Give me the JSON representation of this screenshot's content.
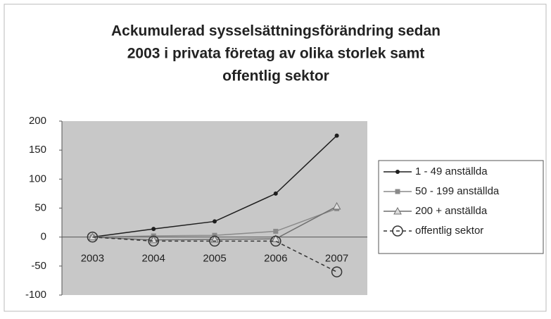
{
  "chart_data": {
    "type": "line",
    "title": [
      "Ackumulerad sysselsättningsförändring sedan",
      "2003 i privata företag av olika storlek samt",
      "offentlig sektor"
    ],
    "categories": [
      "2003",
      "2004",
      "2005",
      "2006",
      "2007"
    ],
    "series": [
      {
        "name": "1 - 49 anställda",
        "color": "#1e1e1e",
        "marker": "dot",
        "dash": false,
        "values": [
          0,
          14,
          27,
          75,
          175
        ]
      },
      {
        "name": "50 - 199 anställda",
        "color": "#8a8a8a",
        "marker": "square",
        "dash": false,
        "values": [
          0,
          2,
          3,
          10,
          49
        ]
      },
      {
        "name": "200 + anställda",
        "color": "#6f6f6f",
        "marker": "triangle",
        "dash": false,
        "values": [
          0,
          -5,
          -4,
          -3,
          53
        ]
      },
      {
        "name": "offentlig sektor",
        "color": "#333333",
        "marker": "circle",
        "dash": true,
        "values": [
          0,
          -7,
          -7,
          -7,
          -60
        ]
      }
    ],
    "ylim": [
      -100,
      200
    ],
    "yticks": [
      -100,
      -50,
      0,
      50,
      100,
      150,
      200
    ],
    "grid": false,
    "legend": "right"
  }
}
